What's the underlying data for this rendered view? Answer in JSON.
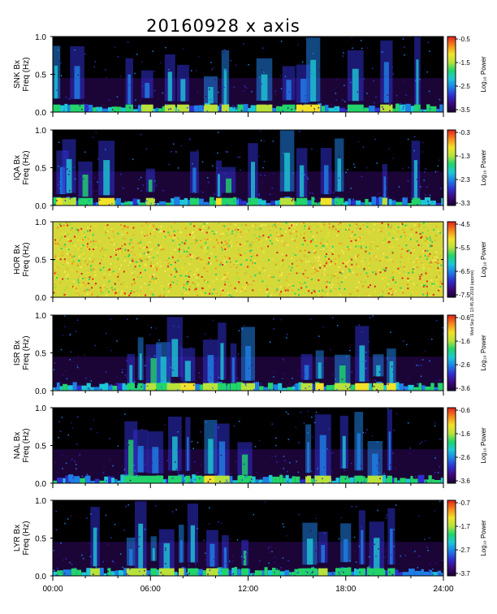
{
  "chart_data": {
    "type": "heatmap",
    "title": "20160928 x axis",
    "side_note": "Wed Sep 11 13:45:26 2019 (approx)",
    "x_range_hours": [
      0,
      24
    ],
    "x_tick_labels": [
      "00:00",
      "06:00",
      "12:00",
      "18:00",
      "24:00"
    ],
    "y_range_hz": [
      0.0,
      1.0
    ],
    "y_tick_labels": [
      "0.0",
      "0.5",
      "1.0"
    ],
    "colorbar_label": "Log₁₀ Power",
    "colors": {
      "background": "#000000",
      "colormap": [
        "#1a0033",
        "#3b0a7a",
        "#2f2fd0",
        "#1f7fe6",
        "#1ec7d6",
        "#22d46a",
        "#b8e23a",
        "#f2e22a",
        "#f58a1c",
        "#e3211c"
      ]
    },
    "panels": [
      {
        "ylabel_station": "SNK Bx",
        "ylabel_unit": "Freq (Hz)",
        "cbar_ticks": [
          "-0.5",
          "-1.5",
          "-2.5",
          "-3.5"
        ],
        "cbar_range": [
          -3.5,
          -0.5
        ],
        "activity_hours": [
          0.2,
          1.5,
          4.7,
          5.8,
          7.2,
          8.0,
          9.7,
          10.6,
          13.0,
          14.5,
          15.4,
          16.0,
          18.6,
          20.5,
          22.4
        ]
      },
      {
        "ylabel_station": "IQA Bx",
        "ylabel_unit": "Freq (Hz)",
        "cbar_ticks": [
          "-0.3",
          "-1.3",
          "-2.3",
          "-3.3"
        ],
        "cbar_range": [
          -3.3,
          -0.3
        ],
        "activity_hours": [
          0.6,
          1.0,
          2.0,
          3.3,
          6.0,
          8.7,
          10.2,
          10.8,
          12.3,
          14.4,
          15.3,
          16.8,
          17.6,
          20.4,
          22.3
        ]
      },
      {
        "ylabel_station": "HOR Bx",
        "ylabel_unit": "Freq (Hz)",
        "cbar_ticks": [
          "-4.5",
          "-5.5",
          "-6.5",
          "-7.5"
        ],
        "cbar_range": [
          -7.5,
          -4.5
        ],
        "activity_hours": []
      },
      {
        "ylabel_station": "ISR Bx",
        "ylabel_unit": "Freq (Hz)",
        "cbar_ticks": [
          "-0.6",
          "-1.6",
          "-2.6",
          "-3.6"
        ],
        "cbar_range": [
          -3.6,
          -0.6
        ],
        "activity_hours": [
          4.8,
          5.4,
          6.2,
          6.8,
          7.5,
          8.3,
          9.7,
          10.4,
          11.1,
          12.0,
          15.6,
          16.4,
          17.8,
          19.0,
          20.0,
          20.8
        ]
      },
      {
        "ylabel_station": "NAL Bx",
        "ylabel_unit": "Freq (Hz)",
        "cbar_ticks": [
          "-0.6",
          "-1.6",
          "-2.6",
          "-3.6"
        ],
        "cbar_range": [
          -3.6,
          -0.6
        ],
        "activity_hours": [
          4.8,
          5.4,
          6.3,
          7.5,
          8.3,
          9.7,
          10.4,
          11.8,
          15.7,
          16.6,
          17.9,
          18.8,
          19.8,
          20.7
        ]
      },
      {
        "ylabel_station": "LYR Bx",
        "ylabel_unit": "Freq (Hz)",
        "cbar_ticks": [
          "-0.7",
          "-1.7",
          "-2.7",
          "-3.7"
        ],
        "cbar_range": [
          -3.7,
          -0.7
        ],
        "activity_hours": [
          2.6,
          4.8,
          5.4,
          6.2,
          7.0,
          7.9,
          8.6,
          9.8,
          10.6,
          11.8,
          15.8,
          16.6,
          18.0,
          19.0,
          19.9,
          20.8
        ]
      }
    ]
  }
}
